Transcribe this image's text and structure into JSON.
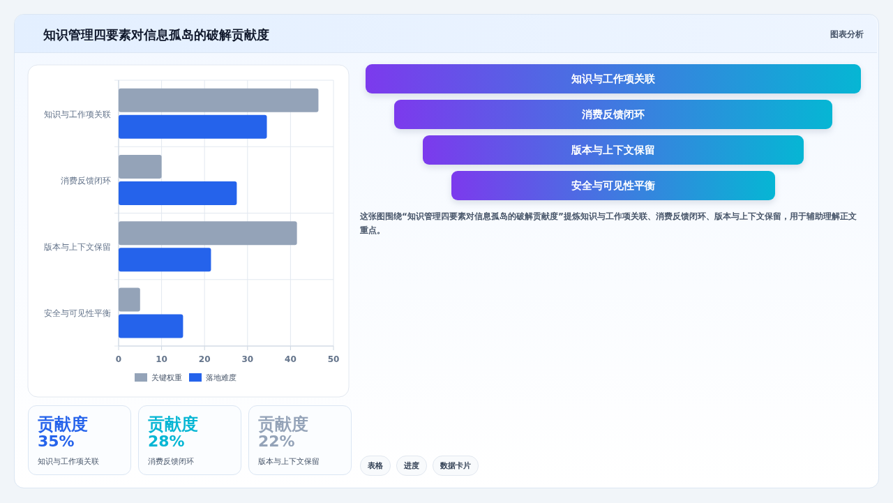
{
  "chart_data": [
    {
      "type": "bar",
      "orientation": "horizontal",
      "title": "知识管理四要素对信息孤岛的破解贡献度",
      "annotations": [
        "图表分析"
      ],
      "categories": [
        "知识与工作项关联",
        "消费反馈闭环",
        "版本与上下文保留",
        "安全与可见性平衡"
      ],
      "series": [
        {
          "name": "关键权重",
          "color": "#94a3b8",
          "values": [
            46.5,
            10,
            41.5,
            5
          ]
        },
        {
          "name": "落地难度",
          "color": "#2563eb",
          "values": [
            34.5,
            27.5,
            21.5,
            15
          ]
        }
      ],
      "xlim": [
        0,
        50
      ],
      "xticks": [
        0,
        10,
        20,
        30,
        40,
        50
      ],
      "grid": true,
      "legend": "bottom"
    },
    {
      "type": "other",
      "categories": [
        "知识与工作项关联",
        "消费反馈闭环",
        "版本与上下文保留",
        "安全与可见性平衡"
      ],
      "annotations": [
        "这张图围绕“知识管理四要素对信息孤岛的破解贡献度”提炼知识与工作项关联、消费反馈闭环、版本与上下文保留，用于辅助理解正文重点。",
        "表格",
        "进度",
        "数据卡片"
      ]
    },
    {
      "type": "other",
      "categories": [
        "知识与工作项关联",
        "消费反馈闭环",
        "版本与上下文保留"
      ],
      "value_labels": [
        "35%",
        "28%",
        "22%"
      ],
      "annotations": [
        "贡献度",
        "贡献度",
        "贡献度"
      ]
    }
  ]
}
